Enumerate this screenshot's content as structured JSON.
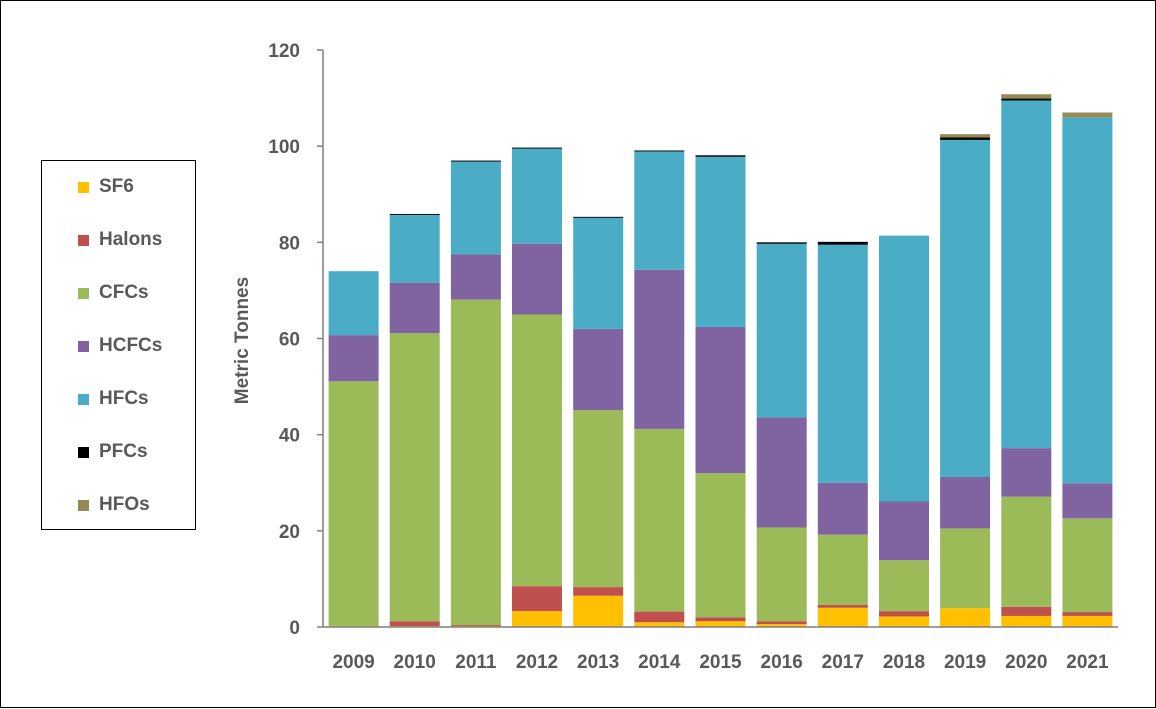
{
  "chart_data": {
    "type": "bar",
    "stacked": true,
    "title": "",
    "xlabel": "",
    "ylabel": "Metric Tonnes",
    "ylim": [
      0,
      120
    ],
    "yticks": [
      "0",
      "20",
      "40",
      "60",
      "80",
      "100",
      "120"
    ],
    "categories": [
      "2009",
      "2010",
      "2011",
      "2012",
      "2013",
      "2014",
      "2015",
      "2016",
      "2017",
      "2018",
      "2019",
      "2020",
      "2021"
    ],
    "grid": false,
    "legend_position": "left",
    "series": [
      {
        "name": "SF6",
        "color": "#FFC000",
        "values": [
          0.2,
          0.2,
          0.2,
          3.3,
          6.5,
          1.0,
          1.2,
          0.6,
          4.0,
          2.2,
          3.9,
          2.3,
          2.3
        ]
      },
      {
        "name": "Halons",
        "color": "#C0504D",
        "values": [
          0.0,
          1.0,
          0.2,
          5.2,
          1.8,
          2.2,
          0.8,
          0.6,
          0.6,
          1.1,
          0.0,
          1.9,
          0.8
        ]
      },
      {
        "name": "CFCs",
        "color": "#9BBB59",
        "values": [
          50.9,
          59.9,
          67.7,
          56.5,
          36.8,
          38.0,
          30.0,
          19.5,
          14.6,
          10.6,
          16.6,
          22.9,
          19.5
        ]
      },
      {
        "name": "HCFCs",
        "color": "#8064A2",
        "values": [
          9.6,
          10.5,
          9.4,
          14.7,
          16.9,
          33.1,
          30.4,
          22.9,
          10.8,
          12.2,
          10.7,
          10.1,
          7.3
        ]
      },
      {
        "name": "HFCs",
        "color": "#4BACC6",
        "values": [
          13.3,
          14.1,
          19.3,
          19.8,
          23.1,
          24.6,
          35.4,
          36.1,
          49.5,
          55.3,
          70.1,
          72.3,
          76.1
        ]
      },
      {
        "name": "PFCs",
        "color": "#000000",
        "values": [
          0.0,
          0.2,
          0.2,
          0.2,
          0.2,
          0.2,
          0.3,
          0.3,
          0.6,
          0.0,
          0.5,
          0.4,
          0.0
        ]
      },
      {
        "name": "HFOs",
        "color": "#948A54",
        "values": [
          0.0,
          0.0,
          0.0,
          0.0,
          0.0,
          0.0,
          0.0,
          0.0,
          0.0,
          0.0,
          0.7,
          0.9,
          1.0
        ]
      }
    ]
  }
}
